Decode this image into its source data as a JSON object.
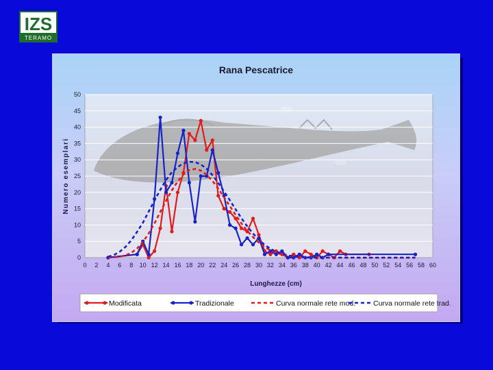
{
  "logo": {
    "text": "IZS",
    "subtext": "TERAMO"
  },
  "chart_data": {
    "type": "line",
    "title": "Rana Pescatrice",
    "xlabel": "Lunghezze (cm)",
    "ylabel": "Numero esemplari",
    "xlim": [
      0,
      60
    ],
    "ylim": [
      0,
      50
    ],
    "xticks": [
      0,
      2,
      4,
      6,
      8,
      10,
      12,
      14,
      16,
      18,
      20,
      22,
      24,
      26,
      28,
      30,
      32,
      34,
      36,
      38,
      40,
      42,
      44,
      46,
      48,
      50,
      52,
      54,
      56,
      58,
      60
    ],
    "yticks": [
      0,
      5,
      10,
      15,
      20,
      25,
      30,
      35,
      40,
      45,
      50
    ],
    "grid": true,
    "legend_position": "bottom",
    "series": [
      {
        "name": "Modificata",
        "color": "#e11b1b",
        "style": "solid-markers",
        "x": [
          4,
          9,
          10,
          11,
          12,
          13,
          14,
          15,
          16,
          17,
          18,
          19,
          20,
          21,
          22,
          23,
          24,
          25,
          26,
          27,
          28,
          29,
          30,
          31,
          32,
          33,
          34,
          35,
          36,
          37,
          38,
          39,
          40,
          41,
          42,
          43,
          44,
          45,
          49
        ],
        "y": [
          0,
          1,
          4,
          0,
          2,
          9,
          22,
          8,
          20,
          26,
          38,
          36,
          42,
          33,
          36,
          19,
          15,
          14,
          12,
          9,
          8,
          12,
          7,
          2,
          1,
          2,
          1,
          0,
          1,
          0,
          2,
          1,
          0,
          2,
          1,
          0,
          2,
          1,
          1
        ]
      },
      {
        "name": "Tradizionale",
        "color": "#1523c8",
        "style": "solid-markers",
        "x": [
          4,
          9,
          10,
          11,
          12,
          13,
          14,
          15,
          16,
          17,
          18,
          19,
          20,
          21,
          22,
          23,
          24,
          25,
          26,
          27,
          28,
          29,
          30,
          31,
          32,
          33,
          34,
          35,
          36,
          37,
          38,
          39,
          40,
          41,
          42,
          57
        ],
        "y": [
          0,
          1,
          5,
          1,
          18,
          43,
          20,
          23,
          32,
          39,
          23,
          11,
          25,
          25,
          33,
          26,
          19,
          10,
          9,
          4,
          6,
          4,
          6,
          1,
          2,
          1,
          2,
          0,
          0,
          1,
          0,
          0,
          1,
          0,
          1,
          1
        ]
      },
      {
        "name": "Curva normale rete mod.",
        "color": "#e11b1b",
        "style": "dashed",
        "x": [
          4,
          5,
          6,
          7,
          8,
          9,
          10,
          11,
          12,
          13,
          14,
          15,
          16,
          17,
          18,
          19,
          20,
          21,
          22,
          23,
          24,
          25,
          26,
          27,
          28,
          29,
          30,
          31,
          32,
          33,
          34,
          35,
          36,
          37,
          38,
          39,
          40,
          41,
          42,
          43,
          44,
          45,
          46,
          47,
          48,
          49,
          50,
          51,
          52,
          53,
          54,
          55,
          56,
          57
        ],
        "y": [
          0.0,
          0.1,
          0.3,
          0.7,
          1.5,
          2.8,
          4.8,
          7.4,
          10.5,
          14.0,
          17.4,
          20.6,
          23.4,
          25.5,
          26.8,
          27.2,
          26.7,
          25.4,
          23.5,
          21.2,
          18.5,
          15.8,
          13.1,
          10.5,
          8.2,
          6.3,
          4.6,
          3.3,
          2.2,
          1.5,
          0.9,
          0.6,
          0.3,
          0.2,
          0.1,
          0.1,
          0.0,
          0.0,
          0.0,
          0.0,
          0.0,
          0.0,
          0.0,
          0.0,
          0.0,
          0.0,
          0.0,
          0.0,
          0.0,
          0.0,
          0.0,
          0.0,
          0.0,
          0.0
        ]
      },
      {
        "name": "Curva normale rete trad.",
        "color": "#1523c8",
        "style": "dashed",
        "x": [
          4,
          5,
          6,
          7,
          8,
          9,
          10,
          11,
          12,
          13,
          14,
          15,
          16,
          17,
          18,
          19,
          20,
          21,
          22,
          23,
          24,
          25,
          26,
          27,
          28,
          29,
          30,
          31,
          32,
          33,
          34,
          35,
          36,
          37,
          38,
          39,
          40,
          41,
          42,
          43,
          44,
          45,
          46,
          47,
          48,
          49,
          50,
          51,
          52,
          53,
          54,
          55,
          56,
          57
        ],
        "y": [
          0.3,
          0.8,
          1.8,
          3.3,
          5.3,
          7.9,
          10.7,
          14.1,
          17.5,
          20.8,
          23.8,
          26.2,
          27.8,
          28.9,
          29.4,
          29.3,
          28.6,
          27.2,
          25.3,
          22.9,
          20.3,
          17.6,
          14.8,
          12.1,
          9.6,
          7.4,
          5.5,
          3.9,
          2.7,
          1.8,
          1.2,
          0.7,
          0.4,
          0.2,
          0.1,
          0.1,
          0.0,
          0.0,
          0.0,
          0.0,
          0.0,
          0.0,
          0.0,
          0.0,
          0.0,
          0.0,
          0.0,
          0.0,
          0.0,
          0.0,
          0.0,
          0.0,
          0.0,
          0.0
        ]
      }
    ]
  }
}
